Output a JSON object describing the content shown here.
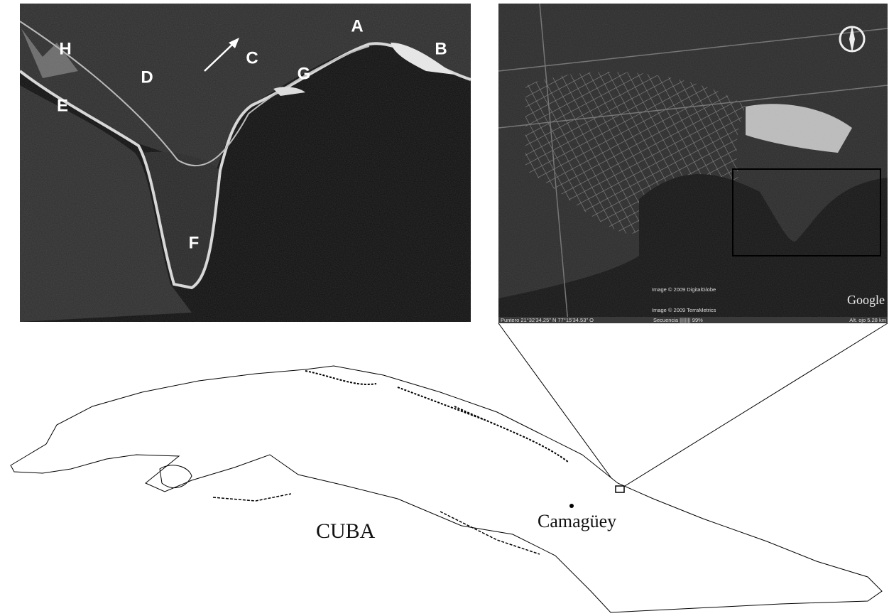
{
  "left_panel": {
    "labels": [
      "H",
      "D",
      "C",
      "A",
      "B",
      "G",
      "E",
      "F"
    ]
  },
  "right_panel": {
    "credit_1": "Image © 2009 DigitalGlobe",
    "credit_2": "Image © 2009 TerraMetrics",
    "logo": "Google",
    "status_pointer": "Puntero  21°32'34.25\" N    77°15'34.53\" O",
    "status_sequence": "Secuencia  ||||||||  99%",
    "status_altitude": "Alt. ojo    5.28 km"
  },
  "overview_map": {
    "country": "CUBA",
    "city": "Camagüey"
  }
}
